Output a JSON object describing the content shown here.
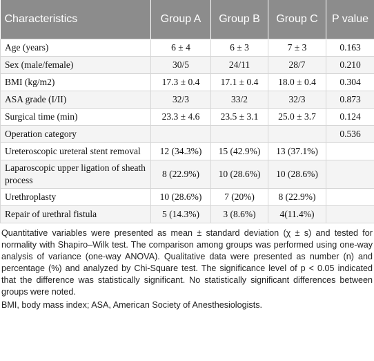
{
  "table": {
    "header": [
      "Characteristics",
      "Group A",
      "Group B",
      "Group C",
      "P value"
    ],
    "rows": [
      [
        "Age (years)",
        "6 ± 4",
        "6 ± 3",
        "7 ± 3",
        "0.163"
      ],
      [
        "Sex (male/female)",
        "30/5",
        "24/11",
        "28/7",
        "0.210"
      ],
      [
        "BMI (kg/m2)",
        "17.3 ± 0.4",
        "17.1 ± 0.4",
        "18.0 ± 0.4",
        "0.304"
      ],
      [
        "ASA grade (I/II)",
        "32/3",
        "33/2",
        "32/3",
        "0.873"
      ],
      [
        "Surgical time (min)",
        "23.3 ± 4.6",
        "23.5 ± 3.1",
        "25.0 ± 3.7",
        "0.124"
      ],
      [
        "Operation category",
        null,
        null,
        null,
        "0.536"
      ],
      [
        "Ureteroscopic ureteral stent removal",
        "12 (34.3%)",
        "15 (42.9%)",
        "13 (37.1%)",
        null
      ],
      [
        "Laparoscopic upper ligation of sheath process",
        "8 (22.9%)",
        "10 (28.6%)",
        "10 (28.6%)",
        null
      ],
      [
        "Urethroplasty",
        "10 (28.6%)",
        "7 (20%)",
        "8 (22.9%)",
        null
      ],
      [
        "Repair of urethral fistula",
        "5 (14.3%)",
        "3 (8.6%)",
        "4(11.4%)",
        null
      ]
    ]
  },
  "footnotes": [
    "Quantitative variables were presented as mean ± standard deviation (χ ± s) and tested for normality with Shapiro–Wilk test. The comparison among groups was performed using one-way analysis of variance (one-way ANOVA). Qualitative data were presented as number (n) and percentage (%) and analyzed by Chi-Square test. The significance level of p < 0.05 indicated that the difference was statistically significant. No statistically significant differences between groups were noted.",
    "BMI, body mass index; ASA, American Society of Anesthesiologists."
  ]
}
